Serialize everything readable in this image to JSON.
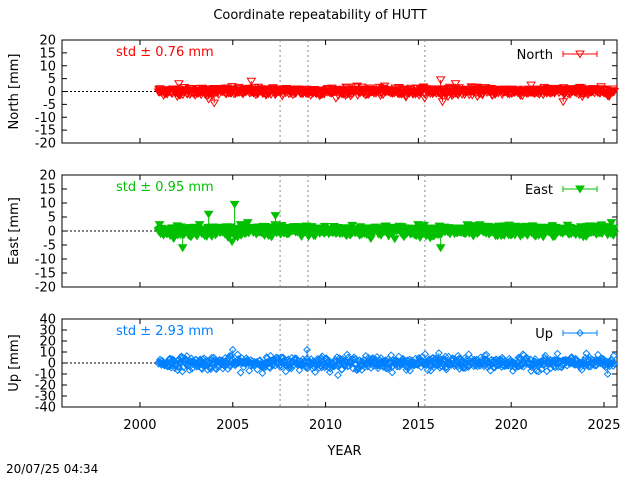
{
  "title": "Coordinate repeatability of HUTT",
  "timestamp": "20/07/25 04:34",
  "xlabel": "YEAR",
  "colors": {
    "north": "#ff0000",
    "east": "#00c000",
    "up": "#0080ff"
  },
  "chart_data": [
    {
      "type": "scatter",
      "ylabel": "North [mm]",
      "ylim": [
        -20,
        20
      ],
      "yticks": [
        "20",
        "15",
        "10",
        "5",
        "0",
        "-5",
        "-10",
        "-15",
        "-20"
      ],
      "legend": "North",
      "legend_position": "top-right",
      "std_label": "std ± 0.76 mm",
      "std": 0.76,
      "marker": "open-triangle-down",
      "series": [
        {
          "name": "North",
          "x_range": [
            2001.0,
            2025.55
          ],
          "mean": 0
        }
      ],
      "outliers": [
        [
          2002.1,
          3
        ],
        [
          2003.7,
          -3
        ],
        [
          2004.0,
          -4.5
        ],
        [
          2006.0,
          4
        ],
        [
          2009.2,
          -1.5
        ],
        [
          2016.2,
          4.5
        ],
        [
          2016.3,
          -4
        ],
        [
          2017.0,
          3
        ],
        [
          2022.8,
          -4
        ]
      ]
    },
    {
      "type": "scatter",
      "ylabel": "East [mm]",
      "ylim": [
        -20,
        20
      ],
      "yticks": [
        "20",
        "15",
        "10",
        "5",
        "0",
        "-5",
        "-10",
        "-15",
        "-20"
      ],
      "legend": "East",
      "legend_position": "top-right",
      "std_label": "std ± 0.95 mm",
      "std": 0.95,
      "marker": "filled-triangle-down",
      "series": [
        {
          "name": "East",
          "x_range": [
            2001.0,
            2025.55
          ],
          "mean": 0
        }
      ],
      "outliers": [
        [
          2002.3,
          -6
        ],
        [
          2003.7,
          6
        ],
        [
          2005.1,
          9.5
        ],
        [
          2007.3,
          5.5
        ],
        [
          2016.2,
          -6
        ],
        [
          2025.4,
          3
        ]
      ]
    },
    {
      "type": "scatter",
      "ylabel": "Up [mm]",
      "ylim": [
        -40,
        40
      ],
      "yticks": [
        "40",
        "30",
        "20",
        "10",
        "0",
        "-10",
        "-20",
        "-30",
        "-40"
      ],
      "legend": "Up",
      "legend_position": "top-right",
      "std_label": "std ± 2.93 mm",
      "std": 2.93,
      "marker": "open-diamond",
      "series": [
        {
          "name": "Up",
          "x_range": [
            2001.0,
            2025.55
          ],
          "mean": 0
        }
      ],
      "outliers": [
        [
          2005.0,
          12
        ],
        [
          2009.0,
          12
        ],
        [
          2016.1,
          9
        ],
        [
          2025.2,
          -10
        ]
      ]
    }
  ],
  "x_axis": {
    "xlim": [
      1995.8,
      2025.7
    ],
    "ticks": [
      "2000",
      "2005",
      "2010",
      "2015",
      "2020",
      "2025"
    ],
    "tick_values": [
      2000,
      2005,
      2010,
      2015,
      2020,
      2025
    ]
  },
  "reference_lines_x": [
    2007.55,
    2009.05,
    2015.35
  ]
}
